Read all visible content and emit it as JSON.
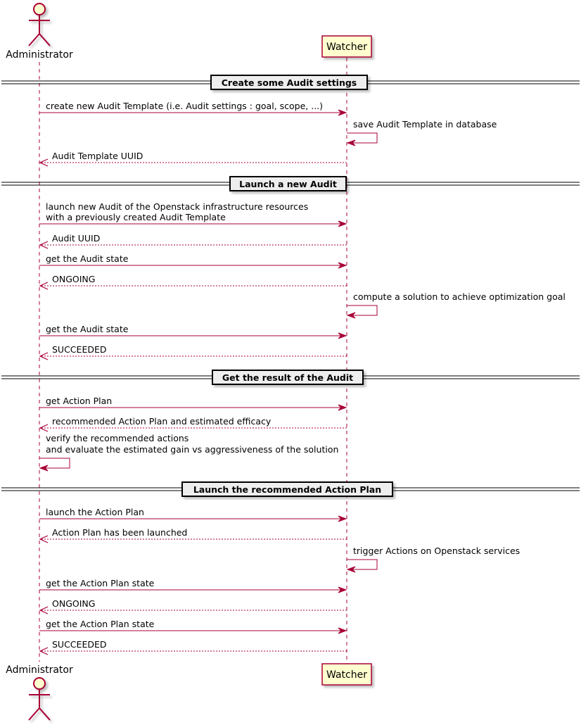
{
  "participants": {
    "admin": {
      "label": "Administrator",
      "type": "actor"
    },
    "watcher": {
      "label": "Watcher",
      "type": "participant"
    }
  },
  "colors": {
    "line": "#A80036",
    "fill": "#FEFECE",
    "divider_fill": "#EEEEEE"
  },
  "steps": [
    {
      "kind": "divider",
      "text": "Create some Audit settings"
    },
    {
      "kind": "sync",
      "from": "admin",
      "to": "watcher",
      "lines": [
        "create new Audit Template (i.e. Audit settings : goal, scope, ...)"
      ]
    },
    {
      "kind": "self",
      "on": "watcher",
      "lines": [
        "save Audit Template in database"
      ]
    },
    {
      "kind": "return",
      "from": "watcher",
      "to": "admin",
      "lines": [
        "Audit Template UUID"
      ]
    },
    {
      "kind": "divider",
      "text": "Launch a new Audit"
    },
    {
      "kind": "sync",
      "from": "admin",
      "to": "watcher",
      "lines": [
        "launch new Audit of the Openstack infrastructure resources",
        "with a previously created Audit Template"
      ]
    },
    {
      "kind": "return",
      "from": "watcher",
      "to": "admin",
      "lines": [
        "Audit UUID"
      ]
    },
    {
      "kind": "sync",
      "from": "admin",
      "to": "watcher",
      "lines": [
        "get the Audit state"
      ]
    },
    {
      "kind": "return",
      "from": "watcher",
      "to": "admin",
      "lines": [
        "ONGOING"
      ]
    },
    {
      "kind": "self",
      "on": "watcher",
      "lines": [
        "compute a solution to achieve optimization goal"
      ]
    },
    {
      "kind": "sync",
      "from": "admin",
      "to": "watcher",
      "lines": [
        "get the Audit state"
      ]
    },
    {
      "kind": "return",
      "from": "watcher",
      "to": "admin",
      "lines": [
        "SUCCEEDED"
      ]
    },
    {
      "kind": "divider",
      "text": "Get the result of the Audit"
    },
    {
      "kind": "sync",
      "from": "admin",
      "to": "watcher",
      "lines": [
        "get Action Plan"
      ]
    },
    {
      "kind": "return",
      "from": "watcher",
      "to": "admin",
      "lines": [
        "recommended Action Plan and estimated efficacy"
      ]
    },
    {
      "kind": "self",
      "on": "admin",
      "lines": [
        "verify the recommended actions",
        "and evaluate the estimated gain vs aggressiveness of the solution"
      ]
    },
    {
      "kind": "divider",
      "text": "Launch the recommended Action Plan"
    },
    {
      "kind": "sync",
      "from": "admin",
      "to": "watcher",
      "lines": [
        "launch the Action Plan"
      ]
    },
    {
      "kind": "return",
      "from": "watcher",
      "to": "admin",
      "lines": [
        "Action Plan has been launched"
      ]
    },
    {
      "kind": "self",
      "on": "watcher",
      "lines": [
        "trigger Actions on Openstack services"
      ]
    },
    {
      "kind": "sync",
      "from": "admin",
      "to": "watcher",
      "lines": [
        "get the Action Plan state"
      ]
    },
    {
      "kind": "return",
      "from": "watcher",
      "to": "admin",
      "lines": [
        "ONGOING"
      ]
    },
    {
      "kind": "sync",
      "from": "admin",
      "to": "watcher",
      "lines": [
        "get the Action Plan state"
      ]
    },
    {
      "kind": "return",
      "from": "watcher",
      "to": "admin",
      "lines": [
        "SUCCEEDED"
      ]
    }
  ]
}
